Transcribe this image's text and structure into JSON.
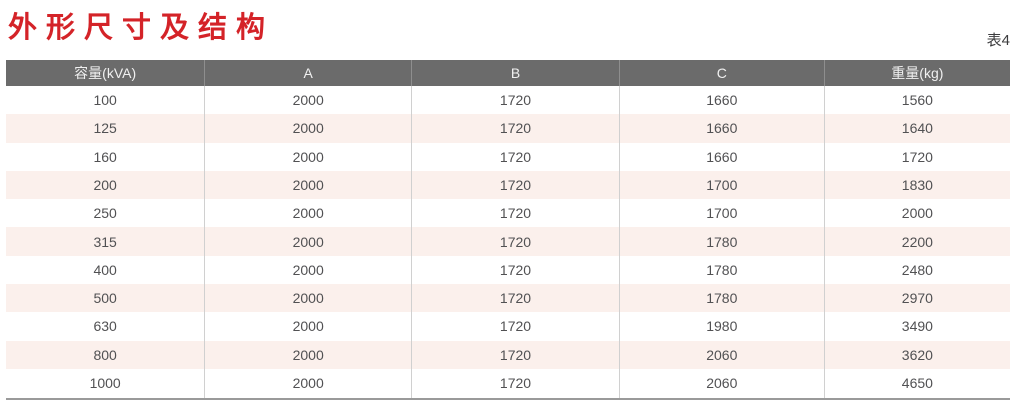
{
  "page": {
    "title": "外形尺寸及结构",
    "table_label": "表4"
  },
  "colors": {
    "title_red": "#d42328",
    "header_bg": "#6b6b6b",
    "header_text": "#f0f0f0",
    "row_alt_bg": "#fbf0ec",
    "body_text": "#515153",
    "divider": "#d0d0d0",
    "bottom_border": "#9a9a9a"
  },
  "table": {
    "headers": [
      "容量(kVA)",
      "A",
      "B",
      "C",
      "重量(kg)"
    ],
    "rows": [
      [
        "100",
        "2000",
        "1720",
        "1660",
        "1560"
      ],
      [
        "125",
        "2000",
        "1720",
        "1660",
        "1640"
      ],
      [
        "160",
        "2000",
        "1720",
        "1660",
        "1720"
      ],
      [
        "200",
        "2000",
        "1720",
        "1700",
        "1830"
      ],
      [
        "250",
        "2000",
        "1720",
        "1700",
        "2000"
      ],
      [
        "315",
        "2000",
        "1720",
        "1780",
        "2200"
      ],
      [
        "400",
        "2000",
        "1720",
        "1780",
        "2480"
      ],
      [
        "500",
        "2000",
        "1720",
        "1780",
        "2970"
      ],
      [
        "630",
        "2000",
        "1720",
        "1980",
        "3490"
      ],
      [
        "800",
        "2000",
        "1720",
        "2060",
        "3620"
      ],
      [
        "1000",
        "2000",
        "1720",
        "2060",
        "4650"
      ]
    ]
  }
}
